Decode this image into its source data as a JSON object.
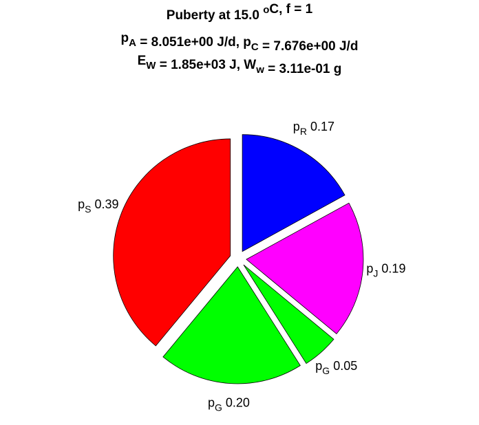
{
  "chart_data": {
    "type": "pie",
    "title": [
      [
        {
          "text": "Puberty at 15.0 "
        },
        {
          "sup": "o"
        },
        {
          "text": "C, f = 1"
        }
      ],
      [
        {
          "text": "p"
        },
        {
          "sub": "A"
        },
        {
          "text": " = 8.051e+00 J/d,  p"
        },
        {
          "sub": "C"
        },
        {
          "text": " = 7.676e+00 J/d"
        }
      ],
      [
        {
          "text": "E"
        },
        {
          "sub": "W"
        },
        {
          "text": " = 1.85e+03 J, W"
        },
        {
          "sub": "w"
        },
        {
          "text": " = 3.11e-01 g"
        }
      ]
    ],
    "labels": [
      {
        "text": "p",
        "sub": "R"
      },
      {
        "text": "p",
        "sub": "J"
      },
      {
        "text": "p",
        "sub": "G"
      },
      {
        "text": "p",
        "sub": "G"
      },
      {
        "text": "p",
        "sub": "S"
      }
    ],
    "values": [
      0.17,
      0.19,
      0.05,
      0.2,
      0.39
    ],
    "value_labels": [
      "0.17",
      "0.19",
      "0.05",
      "0.20",
      "0.39"
    ],
    "colors": [
      "#0000ff",
      "#ff00ff",
      "#00ff00",
      "#00ff00",
      "#ff0000"
    ],
    "direction": "clockwise",
    "start": "top"
  }
}
